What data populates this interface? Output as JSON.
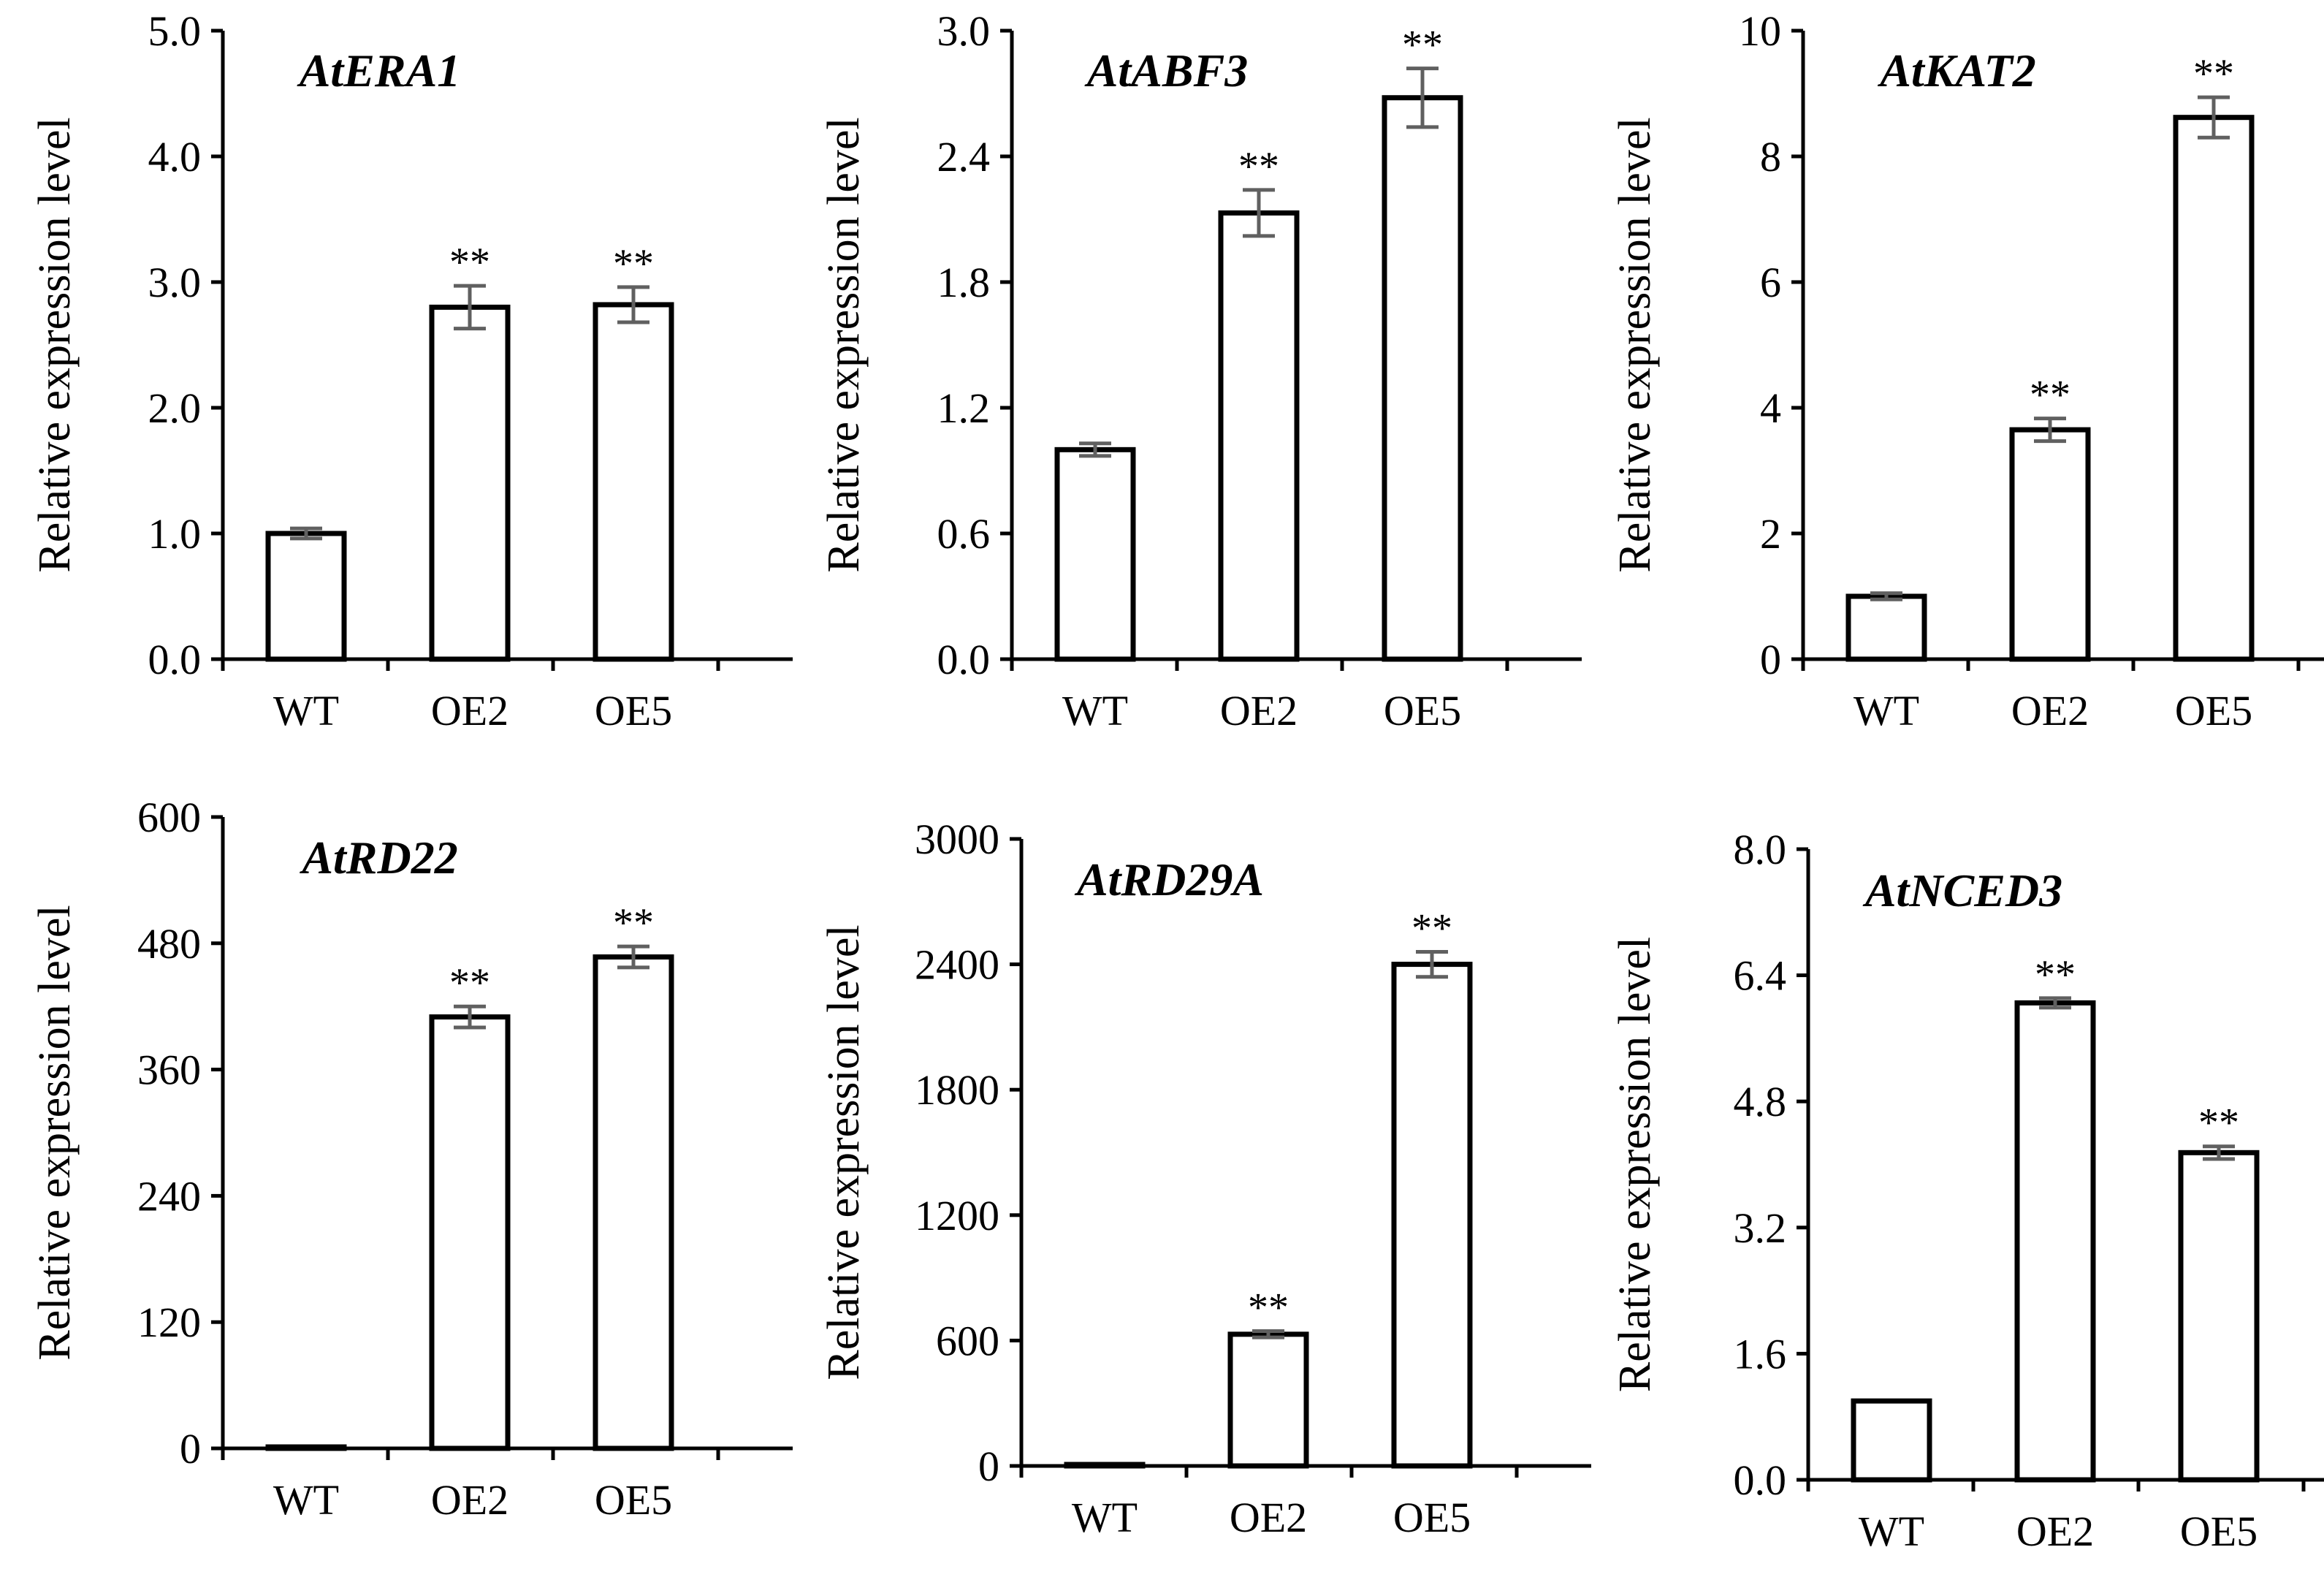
{
  "chart_data": [
    {
      "type": "bar",
      "title": "AtERA1",
      "ylabel": "Relative expression level",
      "xlabel": "",
      "categories": [
        "WT",
        "OE2",
        "OE5"
      ],
      "values": [
        1.0,
        2.8,
        2.82
      ],
      "errors": [
        0.04,
        0.17,
        0.14
      ],
      "significance": [
        "",
        "**",
        "**"
      ],
      "ylim": [
        0,
        5.0
      ],
      "yticks": [
        "0.0",
        "1.0",
        "2.0",
        "3.0",
        "4.0",
        "5.0"
      ]
    },
    {
      "type": "bar",
      "title": "AtABF3",
      "ylabel": "Relative expression level",
      "xlabel": "",
      "categories": [
        "WT",
        "OE2",
        "OE5"
      ],
      "values": [
        1.0,
        2.13,
        2.68
      ],
      "errors": [
        0.03,
        0.11,
        0.14
      ],
      "significance": [
        "",
        "**",
        "**"
      ],
      "ylim": [
        0,
        3.0
      ],
      "yticks": [
        "0.0",
        "0.6",
        "1.2",
        "1.8",
        "2.4",
        "3.0"
      ]
    },
    {
      "type": "bar",
      "title": "AtKAT2",
      "ylabel": "Relative expression level",
      "xlabel": "",
      "categories": [
        "WT",
        "OE2",
        "OE5"
      ],
      "values": [
        1.0,
        3.65,
        8.62
      ],
      "errors": [
        0.05,
        0.18,
        0.32
      ],
      "significance": [
        "",
        "**",
        "**"
      ],
      "ylim": [
        0,
        10
      ],
      "yticks": [
        "0",
        "2",
        "4",
        "6",
        "8",
        "10"
      ]
    },
    {
      "type": "bar",
      "title": "AtRD22",
      "ylabel": "Relative expression level",
      "xlabel": "",
      "categories": [
        "WT",
        "OE2",
        "OE5"
      ],
      "values": [
        1,
        410,
        467
      ],
      "errors": [
        0,
        10,
        10
      ],
      "significance": [
        "",
        "**",
        "**"
      ],
      "ylim": [
        0,
        600
      ],
      "yticks": [
        "0",
        "120",
        "240",
        "360",
        "480",
        "600"
      ]
    },
    {
      "type": "bar",
      "title": "AtRD29A",
      "ylabel": "Relative expression level",
      "xlabel": "",
      "categories": [
        "WT",
        "OE2",
        "OE5"
      ],
      "values": [
        1,
        630,
        2400
      ],
      "errors": [
        0,
        15,
        60
      ],
      "significance": [
        "",
        "**",
        "**"
      ],
      "ylim": [
        0,
        3000
      ],
      "yticks": [
        "0",
        "600",
        "1200",
        "1800",
        "2400",
        "3000"
      ]
    },
    {
      "type": "bar",
      "title": "AtNCED3",
      "ylabel": "Relative expression level",
      "xlabel": "",
      "categories": [
        "WT",
        "OE2",
        "OE5"
      ],
      "values": [
        1.0,
        6.05,
        4.15
      ],
      "errors": [
        0.0,
        0.06,
        0.08
      ],
      "significance": [
        "",
        "**",
        "**"
      ],
      "ylim": [
        0,
        8.0
      ],
      "yticks": [
        "0.0",
        "1.6",
        "3.2",
        "4.8",
        "6.4",
        "8.0"
      ]
    }
  ]
}
